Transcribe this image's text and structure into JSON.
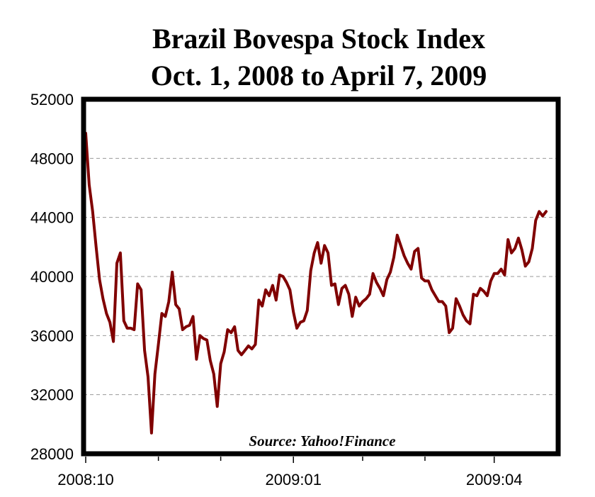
{
  "chart_data": {
    "type": "line",
    "title": "Brazil Bovespa Stock Index",
    "subtitle": "Oct. 1, 2008 to April 7, 2009",
    "annotation": "Source: Yahoo!Finance",
    "ylim": [
      28000,
      52000
    ],
    "yticks": [
      "52000",
      "48000",
      "44000",
      "40000",
      "36000",
      "32000",
      "28000"
    ],
    "ytick_values": [
      52000,
      48000,
      44000,
      40000,
      36000,
      32000,
      28000
    ],
    "xtick_labels": [
      {
        "label": "2008:10",
        "index": 0
      },
      {
        "label": "2009:01",
        "index": 60
      },
      {
        "label": "2009:04",
        "index": 118
      }
    ],
    "minor_tick_indices": [
      21,
      39,
      80,
      98
    ],
    "grid": "horizontal-dashed",
    "series": [
      {
        "name": "Bovespa",
        "color": "#800000",
        "values": [
          49700,
          46200,
          44400,
          42000,
          39800,
          38500,
          37500,
          36900,
          35600,
          40900,
          41600,
          37000,
          36500,
          36500,
          36400,
          39500,
          39100,
          35000,
          33200,
          29400,
          33400,
          35400,
          37500,
          37300,
          38300,
          40300,
          38100,
          37800,
          36400,
          36600,
          36700,
          37300,
          34400,
          36000,
          35800,
          35700,
          34300,
          33400,
          31200,
          34100,
          34900,
          36400,
          36200,
          36600,
          35000,
          34700,
          35000,
          35300,
          35100,
          35400,
          38400,
          38000,
          39100,
          38700,
          39400,
          38400,
          40100,
          40000,
          39600,
          39100,
          37600,
          36500,
          36900,
          37000,
          37700,
          40400,
          41600,
          42300,
          40900,
          42100,
          41600,
          39400,
          39500,
          38100,
          39200,
          39400,
          38800,
          37300,
          38600,
          38000,
          38300,
          38500,
          38800,
          40200,
          39600,
          39200,
          38700,
          39800,
          40300,
          41300,
          42800,
          42100,
          41400,
          40900,
          40500,
          41700,
          41900,
          39900,
          39700,
          39700,
          39100,
          38700,
          38300,
          38300,
          38000,
          36200,
          36500,
          38500,
          38000,
          37400,
          37000,
          36800,
          38800,
          38700,
          39200,
          39000,
          38700,
          39700,
          40200,
          40200,
          40500,
          40100,
          42500,
          41600,
          41900,
          42600,
          41800,
          40700,
          41000,
          41900,
          43800,
          44400,
          44100,
          44400
        ]
      }
    ]
  }
}
